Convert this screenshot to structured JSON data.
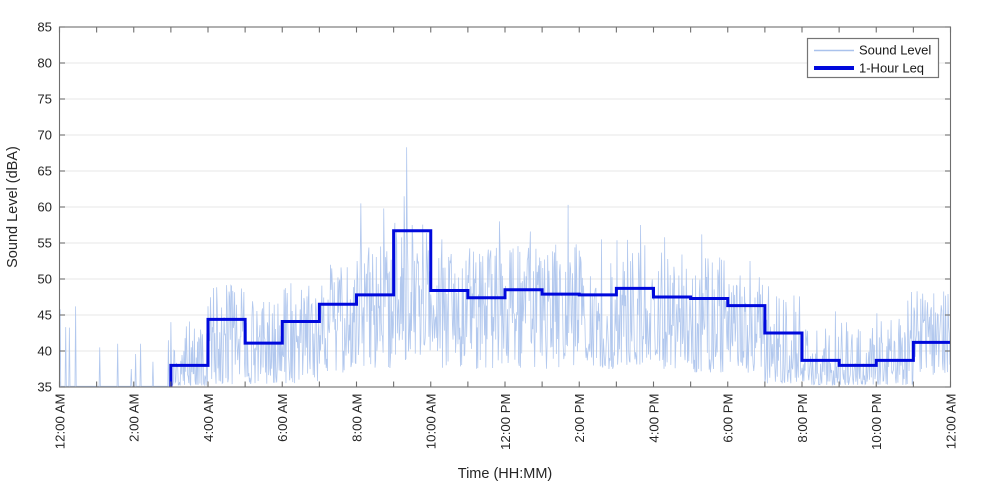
{
  "chart_data": {
    "type": "line",
    "title": "",
    "xlabel": "Time (HH:MM)",
    "ylabel": "Sound Level (dBA)",
    "ylim": [
      35,
      85
    ],
    "xlim_hours": [
      0,
      24
    ],
    "y_ticks": [
      35,
      40,
      45,
      50,
      55,
      60,
      65,
      70,
      75,
      80,
      85
    ],
    "x_tick_every_hours": 1,
    "x_label_every_hours": 2,
    "x_tick_labels": [
      "12:00 AM",
      "2:00 AM",
      "4:00 AM",
      "6:00 AM",
      "8:00 AM",
      "10:00 AM",
      "12:00 PM",
      "2:00 PM",
      "4:00 PM",
      "6:00 PM",
      "8:00 PM",
      "10:00 PM",
      "12:00 AM"
    ],
    "grid": "horizontal-only",
    "legend": {
      "position": "top-right",
      "entries": [
        {
          "label": "Sound Level",
          "color": "#aac2ec",
          "line_width": "thin"
        },
        {
          "label": "1-Hour Leq",
          "color": "#0009dc",
          "line_width": "thick"
        }
      ]
    },
    "colors": {
      "raw_trace": "#aac2ec",
      "leq_step": "#0009dc",
      "axis_box": "#6f6f6f",
      "grid_line": "#e7e7e7",
      "tick_text": "#262626"
    },
    "series": [
      {
        "name": "Sound Level",
        "style": "noisy-minute-trace",
        "samples_per_hour": 60,
        "floor_dba": 35,
        "hourly_envelope_lo_hi_pow_spikeP_spikeHi": [
          [
            34.0,
            34.0,
            1.0,
            0.006,
            44.0
          ],
          [
            34.0,
            34.0,
            1.0,
            0.006,
            40.5
          ],
          [
            34.0,
            34.0,
            1.0,
            0.01,
            41.5
          ],
          [
            35.2,
            44.5,
            2.4,
            0,
            0
          ],
          [
            35.4,
            49.5,
            1.45,
            0,
            0
          ],
          [
            35.4,
            47.5,
            1.6,
            0,
            0
          ],
          [
            35.5,
            50.0,
            1.45,
            0,
            0
          ],
          [
            37.0,
            52.0,
            1.2,
            0,
            0
          ],
          [
            37.5,
            55.0,
            1.2,
            0,
            0
          ],
          [
            38.5,
            58.0,
            1.15,
            0,
            0
          ],
          [
            37.5,
            54.0,
            1.2,
            0,
            0
          ],
          [
            37.5,
            54.5,
            1.2,
            0,
            0
          ],
          [
            37.5,
            55.0,
            1.2,
            0,
            0
          ],
          [
            37.5,
            55.0,
            1.2,
            0,
            0
          ],
          [
            37.5,
            54.0,
            1.2,
            0,
            0
          ],
          [
            38.0,
            55.5,
            1.2,
            0,
            0
          ],
          [
            37.5,
            54.0,
            1.2,
            0,
            0
          ],
          [
            37.0,
            53.0,
            1.25,
            0,
            0
          ],
          [
            37.0,
            50.5,
            1.35,
            0,
            0
          ],
          [
            35.5,
            48.0,
            1.7,
            0,
            0
          ],
          [
            35.3,
            45.0,
            2.2,
            0,
            0
          ],
          [
            35.3,
            44.0,
            2.5,
            0,
            0
          ],
          [
            35.3,
            45.5,
            2.0,
            0,
            0
          ],
          [
            36.5,
            48.3,
            1.3,
            0,
            0
          ]
        ],
        "notable_spikes_t_v": [
          [
            0.02,
            45.8
          ],
          [
            0.44,
            46.2
          ],
          [
            1.08,
            40.5
          ],
          [
            1.56,
            41.0
          ],
          [
            1.94,
            37.5
          ],
          [
            2.18,
            41.0
          ],
          [
            2.52,
            38.5
          ],
          [
            2.93,
            41.5
          ],
          [
            8.12,
            60.5
          ],
          [
            8.73,
            59.8
          ],
          [
            9.28,
            61.5
          ],
          [
            9.35,
            68.3
          ],
          [
            9.5,
            57.5
          ],
          [
            10.3,
            55.5
          ],
          [
            11.85,
            58.0
          ],
          [
            12.68,
            56.6
          ],
          [
            13.7,
            60.3
          ],
          [
            14.6,
            55.5
          ],
          [
            15.65,
            57.5
          ],
          [
            16.3,
            55.8
          ],
          [
            17.3,
            56.2
          ],
          [
            18.6,
            52.5
          ],
          [
            19.1,
            49.0
          ],
          [
            20.9,
            45.5
          ],
          [
            21.2,
            44.0
          ],
          [
            22.85,
            47.0
          ],
          [
            22.95,
            48.2
          ],
          [
            23.1,
            48.3
          ],
          [
            23.55,
            48.0
          ]
        ]
      },
      {
        "name": "1-Hour Leq",
        "style": "hourly-step",
        "hourly_leq_dba": [
          {
            "hour_start": "00:00",
            "value": null
          },
          {
            "hour_start": "01:00",
            "value": null
          },
          {
            "hour_start": "02:00",
            "value": null
          },
          {
            "hour_start": "03:00",
            "value": 38.0
          },
          {
            "hour_start": "04:00",
            "value": 44.4
          },
          {
            "hour_start": "05:00",
            "value": 41.1
          },
          {
            "hour_start": "06:00",
            "value": 44.1
          },
          {
            "hour_start": "07:00",
            "value": 46.5
          },
          {
            "hour_start": "08:00",
            "value": 47.8
          },
          {
            "hour_start": "09:00",
            "value": 56.7
          },
          {
            "hour_start": "10:00",
            "value": 48.4
          },
          {
            "hour_start": "11:00",
            "value": 47.4
          },
          {
            "hour_start": "12:00",
            "value": 48.5
          },
          {
            "hour_start": "13:00",
            "value": 47.9
          },
          {
            "hour_start": "14:00",
            "value": 47.8
          },
          {
            "hour_start": "15:00",
            "value": 48.7
          },
          {
            "hour_start": "16:00",
            "value": 47.5
          },
          {
            "hour_start": "17:00",
            "value": 47.3
          },
          {
            "hour_start": "18:00",
            "value": 46.3
          },
          {
            "hour_start": "19:00",
            "value": 42.5
          },
          {
            "hour_start": "20:00",
            "value": 38.7
          },
          {
            "hour_start": "21:00",
            "value": 38.0
          },
          {
            "hour_start": "22:00",
            "value": 38.7
          },
          {
            "hour_start": "23:00",
            "value": 41.2
          }
        ]
      }
    ]
  }
}
